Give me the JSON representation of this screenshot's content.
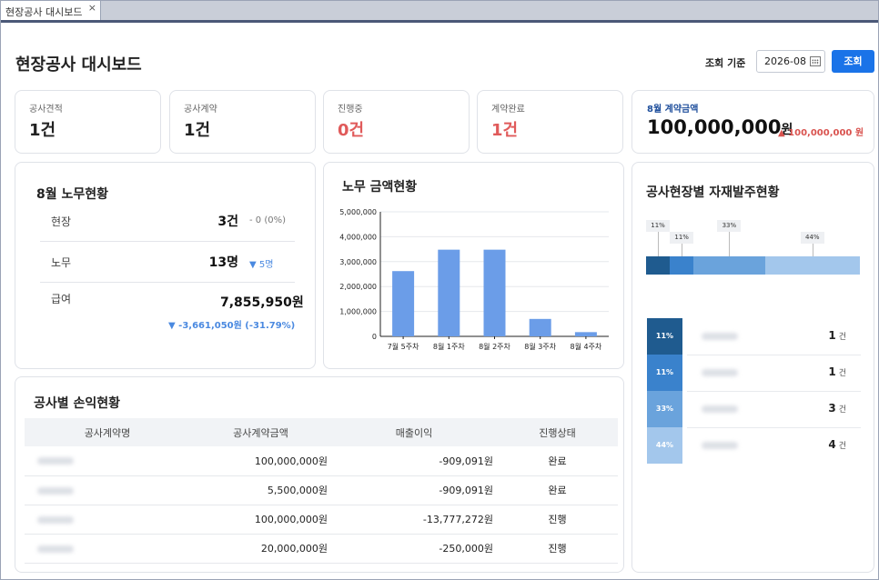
{
  "window": {
    "tab_label": "현장공사 대시보드",
    "close_glyph": "×"
  },
  "header": {
    "title": "현장공사 대시보드",
    "date_label": "조회 기준",
    "date_value": "2026-08",
    "search_label": "조회"
  },
  "stats": [
    {
      "label": "공사견적",
      "value": "1건",
      "color": "#222222"
    },
    {
      "label": "공사계약",
      "value": "1건",
      "color": "#222222"
    },
    {
      "label": "진행중",
      "value": "0건",
      "color": "#e05a5a"
    },
    {
      "label": "계약완료",
      "value": "1건",
      "color": "#e05a5a"
    }
  ],
  "contract_amount": {
    "label": "8월 계약금액",
    "value": "100,000,000",
    "unit": "원",
    "delta": "▲ 100,000,000 원"
  },
  "labor": {
    "title": "8월 노무현황",
    "rows": [
      {
        "key": "현장",
        "value": "3건",
        "delta": "- 0 (0%)"
      },
      {
        "key": "노무",
        "value": "13명",
        "delta": "▼ 5명"
      },
      {
        "key": "급여",
        "value": "7,855,950원",
        "delta": "▼ -3,661,050원 (-31.79%)"
      }
    ]
  },
  "labor_amount": {
    "title": "노무 금액현황"
  },
  "chart_data": {
    "type": "bar",
    "title": "노무 금액현황",
    "categories": [
      "7월 5주차",
      "8월 1주차",
      "8월 2주차",
      "8월 3주차",
      "8월 4주차"
    ],
    "values": [
      2620000,
      3480000,
      3480000,
      700000,
      170000
    ],
    "yticks": [
      "0",
      "1,000,000",
      "2,000,000",
      "3,000,000",
      "4,000,000",
      "5,000,000"
    ],
    "ylim": [
      0,
      5000000
    ],
    "grid": true,
    "bar_color": "#6b9de8"
  },
  "profit": {
    "title": "공사별 손익현황",
    "headers": [
      "공사계약명",
      "공사계약금액",
      "매출이익",
      "진행상태"
    ],
    "rows": [
      {
        "amount": "100,000,000원",
        "profit": "-909,091원",
        "status": "완료"
      },
      {
        "amount": "5,500,000원",
        "profit": "-909,091원",
        "status": "완료"
      },
      {
        "amount": "100,000,000원",
        "profit": "-13,777,272원",
        "status": "진행"
      },
      {
        "amount": "20,000,000원",
        "profit": "-250,000원",
        "status": "진행"
      }
    ]
  },
  "materials": {
    "title": "공사현장별 자재발주현황",
    "segments": [
      {
        "pct": "11%",
        "share": 0.11,
        "color": "#1f5b8f"
      },
      {
        "pct": "11%",
        "share": 0.11,
        "color": "#3a82cc"
      },
      {
        "pct": "33%",
        "share": 0.33,
        "color": "#6aa3dc"
      },
      {
        "pct": "44%",
        "share": 0.44,
        "color": "#a3c7ec"
      }
    ],
    "rows": [
      {
        "pct": "11%",
        "count": "1",
        "unit": "건"
      },
      {
        "pct": "11%",
        "count": "1",
        "unit": "건"
      },
      {
        "pct": "33%",
        "count": "3",
        "unit": "건"
      },
      {
        "pct": "44%",
        "count": "4",
        "unit": "건"
      }
    ]
  }
}
